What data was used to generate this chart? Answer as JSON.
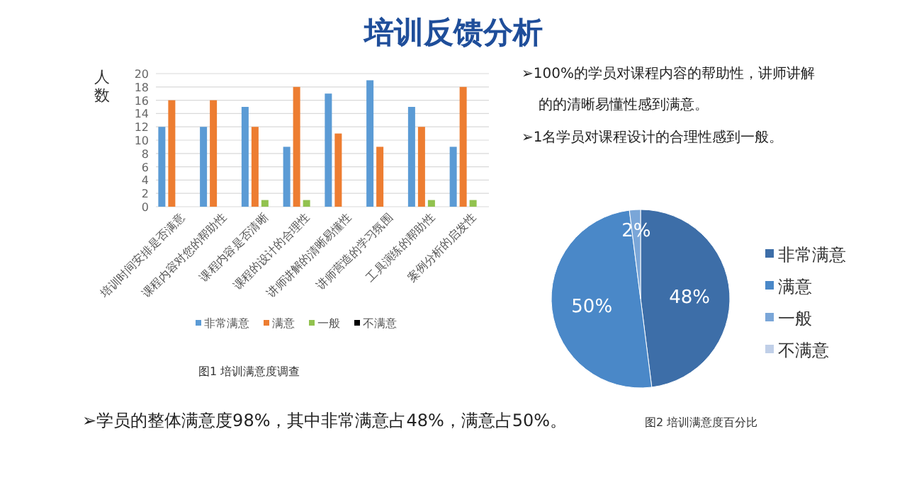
{
  "chart_data": [
    {
      "type": "bar",
      "title": "培训反馈分析",
      "ylabel": "人数",
      "categories": [
        "培训时间安排是否满意",
        "课程内容对您的帮助性",
        "课程内容是否清晰",
        "课程的设计的合理性",
        "讲师讲解的清晰易懂性",
        "讲师营造的学习氛围",
        "工具演练的帮助性",
        "案例分析的启发性"
      ],
      "series": [
        {
          "name": "非常满意",
          "color": "#5b9bd5",
          "values": [
            12,
            12,
            15,
            9,
            17,
            19,
            15,
            9
          ]
        },
        {
          "name": "满意",
          "color": "#ed7d31",
          "values": [
            16,
            16,
            12,
            18,
            11,
            9,
            12,
            18
          ]
        },
        {
          "name": "一般",
          "color": "#92c24f",
          "values": [
            0,
            0,
            1,
            1,
            0,
            0,
            1,
            1
          ]
        },
        {
          "name": "不满意",
          "color": "#000000",
          "values": [
            0,
            0,
            0,
            0,
            0,
            0,
            0,
            0
          ]
        }
      ],
      "ylim": [
        0,
        20
      ],
      "yticks": [
        0,
        2,
        4,
        6,
        8,
        10,
        12,
        14,
        16,
        18,
        20
      ],
      "grid": "y",
      "legend": "bottom",
      "annotations": [
        "图1 培训满意度调查",
        "➢学员的整体满意度98%，其中非常满意占48%，满意占50%。"
      ]
    },
    {
      "type": "pie",
      "categories": [
        "非常满意",
        "满意",
        "一般",
        "不满意"
      ],
      "values": [
        48,
        50,
        2,
        0
      ],
      "colors": [
        "#3d6ea8",
        "#4a88c8",
        "#7aa6d8",
        "#c0cfe8"
      ],
      "value_labels": [
        "48%",
        "50%",
        "2%",
        null
      ],
      "legend": "right",
      "annotations": [
        "➢100%的学员对课程内容的帮助性，讲师讲解的的清晰易懂性感到满意。",
        "➢1名学员对课程设计的合理性感到一般。",
        "图2 培训满意度百分比"
      ]
    }
  ]
}
